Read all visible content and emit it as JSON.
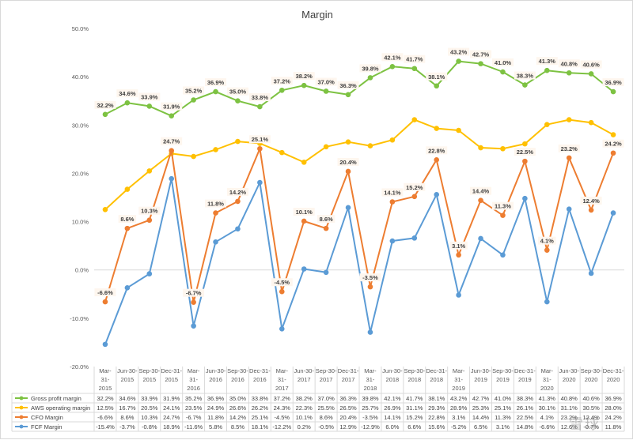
{
  "chart_data": {
    "type": "line",
    "title": "Margin",
    "categories": [
      "Mar-31-2015",
      "Jun-30-2015",
      "Sep-30-2015",
      "Dec-31-2015",
      "Mar-31-2016",
      "Jun-30-2016",
      "Sep-30-2016",
      "Dec-31-2016",
      "Mar-31-2017",
      "Jun-30-2017",
      "Sep-30-2017",
      "Dec-31-2017",
      "Mar-31-2018",
      "Jun-30-2018",
      "Sep-30-2018",
      "Dec-31-2018",
      "Mar-31-2019",
      "Jun-30-2019",
      "Sep-30-2019",
      "Dec-31-2019",
      "Mar-31-2020",
      "Jun-30-2020",
      "Sep-30-2020",
      "Dec-31-2020"
    ],
    "category_lines": [
      [
        "Mar-",
        "31-",
        "2015"
      ],
      [
        "Jun-30-",
        "2015"
      ],
      [
        "Sep-30-",
        "2015"
      ],
      [
        "Dec-31-",
        "2015"
      ],
      [
        "Mar-",
        "31-",
        "2016"
      ],
      [
        "Jun-30-",
        "2016"
      ],
      [
        "Sep-30-",
        "2016"
      ],
      [
        "Dec-31-",
        "2016"
      ],
      [
        "Mar-",
        "31-",
        "2017"
      ],
      [
        "Jun-30-",
        "2017"
      ],
      [
        "Sep-30-",
        "2017"
      ],
      [
        "Dec-31-",
        "2017"
      ],
      [
        "Mar-",
        "31-",
        "2018"
      ],
      [
        "Jun-30-",
        "2018"
      ],
      [
        "Sep-30-",
        "2018"
      ],
      [
        "Dec-31-",
        "2018"
      ],
      [
        "Mar-",
        "31-",
        "2019"
      ],
      [
        "Jun-30-",
        "2019"
      ],
      [
        "Sep-30-",
        "2019"
      ],
      [
        "Dec-31-",
        "2019"
      ],
      [
        "Mar-",
        "31-",
        "2020"
      ],
      [
        "Jun-30-",
        "2020"
      ],
      [
        "Sep-30-",
        "2020"
      ],
      [
        "Dec-31-",
        "2020"
      ]
    ],
    "ylim": [
      -20,
      50
    ],
    "yticks": [
      -20,
      -10,
      0,
      10,
      20,
      30,
      40,
      50
    ],
    "ytick_labels": [
      "-20.0%",
      "-10.0%",
      "0.0%",
      "10.0%",
      "20.0%",
      "30.0%",
      "40.0%",
      "50.0%"
    ],
    "grid": false,
    "legend": "data-table",
    "series": [
      {
        "name": "Gross profit margin",
        "color": "#7dc242",
        "values": [
          32.2,
          34.6,
          33.9,
          31.9,
          35.2,
          36.9,
          35.0,
          33.8,
          37.2,
          38.2,
          37.0,
          36.3,
          39.8,
          42.1,
          41.7,
          38.1,
          43.2,
          42.7,
          41.0,
          38.3,
          41.3,
          40.8,
          40.6,
          36.9
        ],
        "labels": [
          "32.2%",
          "34.6%",
          "33.9%",
          "31.9%",
          "35.2%",
          "36.9%",
          "35.0%",
          "33.8%",
          "37.2%",
          "38.2%",
          "37.0%",
          "36.3%",
          "39.8%",
          "42.1%",
          "41.7%",
          "38.1%",
          "43.2%",
          "42.7%",
          "41.0%",
          "38.3%",
          "41.3%",
          "40.8%",
          "40.6%",
          "36.9%"
        ],
        "table": [
          "32.2%",
          "34.6%",
          "33.9%",
          "31.9%",
          "35.2%",
          "36.9%",
          "35.0%",
          "33.8%",
          "37.2%",
          "38.2%",
          "37.0%",
          "36.3%",
          "39.8%",
          "42.1%",
          "41.7%",
          "38.1%",
          "43.2%",
          "42.7%",
          "41.0%",
          "38.3%",
          "41.3%",
          "40.8%",
          "40.6%",
          "36.9%"
        ]
      },
      {
        "name": "AWS operating margin",
        "color": "#ffc000",
        "values": [
          12.5,
          16.7,
          20.5,
          24.1,
          23.5,
          24.9,
          26.6,
          26.2,
          24.3,
          22.3,
          25.5,
          26.5,
          25.7,
          26.9,
          31.1,
          29.3,
          28.9,
          25.3,
          25.1,
          26.1,
          30.1,
          31.1,
          30.5,
          28.0
        ],
        "labels": [],
        "table": [
          "12.5%",
          "16.7%",
          "20.5%",
          "24.1%",
          "23.5%",
          "24.9%",
          "26.6%",
          "26.2%",
          "24.3%",
          "22.3%",
          "25.5%",
          "26.5%",
          "25.7%",
          "26.9%",
          "31.1%",
          "29.3%",
          "28.9%",
          "25.3%",
          "25.1%",
          "26.1%",
          "30.1%",
          "31.1%",
          "30.5%",
          "28.0%"
        ]
      },
      {
        "name": "CFO Margin",
        "color": "#ed7d31",
        "values": [
          -6.6,
          8.6,
          10.3,
          24.7,
          -6.7,
          11.8,
          14.2,
          25.1,
          -4.5,
          10.1,
          8.6,
          20.4,
          -3.5,
          14.1,
          15.2,
          22.8,
          3.1,
          14.4,
          11.3,
          22.5,
          4.1,
          23.2,
          12.4,
          24.2
        ],
        "labels": [
          "-6.6%",
          "8.6%",
          "10.3%",
          "24.7%",
          "-6.7%",
          "11.8%",
          "14.2%",
          "25.1%",
          "-4.5%",
          "10.1%",
          "8.6%",
          "20.4%",
          "-3.5%",
          "14.1%",
          "15.2%",
          "22.8%",
          "3.1%",
          "14.4%",
          "11.3%",
          "22.5%",
          "4.1%",
          "23.2%",
          "12.4%",
          "24.2%"
        ],
        "table": [
          "-6.6%",
          "8.6%",
          "10.3%",
          "24.7%",
          "-6.7%",
          "11.8%",
          "14.2%",
          "25.1%",
          "-4.5%",
          "10.1%",
          "8.6%",
          "20.4%",
          "-3.5%",
          "14.1%",
          "15.2%",
          "22.8%",
          "3.1%",
          "14.4%",
          "11.3%",
          "22.5%",
          "4.1%",
          "23.2%",
          "12.4%",
          "24.2%"
        ]
      },
      {
        "name": "FCF Margin",
        "color": "#5b9bd5",
        "values": [
          -15.4,
          -3.7,
          -0.8,
          18.9,
          -11.6,
          5.8,
          8.5,
          18.1,
          -12.2,
          0.2,
          -0.5,
          12.9,
          -12.9,
          6.0,
          6.6,
          15.6,
          -5.2,
          6.5,
          3.1,
          14.8,
          -6.6,
          12.6,
          -0.7,
          11.8
        ],
        "labels": [],
        "table": [
          "-15.4%",
          "-3.7%",
          "-0.8%",
          "18.9%",
          "-11.6%",
          "5.8%",
          "8.5%",
          "18.1%",
          "-12.2%",
          "0.2%",
          "-0.5%",
          "12.9%",
          "-12.9%",
          "6.0%",
          "6.6%",
          "15.6%",
          "-5.2%",
          "6.5%",
          "3.1%",
          "14.8%",
          "-6.6%",
          "12.6%",
          "-0.7%",
          "11.8%"
        ]
      }
    ]
  },
  "watermark": "雪球"
}
